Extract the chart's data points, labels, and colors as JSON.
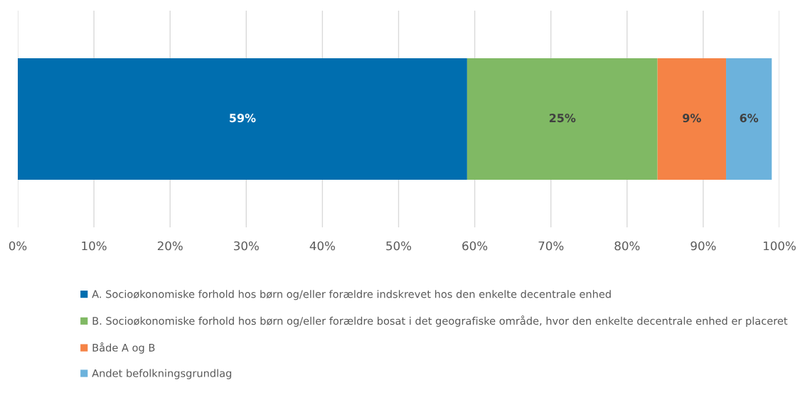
{
  "chart_data": {
    "type": "bar",
    "orientation": "horizontal",
    "stacked": true,
    "categories": [
      null
    ],
    "series": [
      {
        "name": "A. Socioøkonomiske forhold hos børn og/eller forældre indskrevet hos den enkelte decentrale enhed",
        "color": "#006eaf",
        "values": [
          59
        ],
        "value_labels": [
          "59%"
        ]
      },
      {
        "name": "B. Socioøkonomiske forhold hos børn og/eller forældre bosat i det geografiske område, hvor den enkelte decentrale enhed er placeret",
        "color": "#80b964",
        "values": [
          25
        ],
        "value_labels": [
          "25%"
        ]
      },
      {
        "name": "Både A og B",
        "color": "#f58346",
        "values": [
          9
        ],
        "value_labels": [
          "9%"
        ]
      },
      {
        "name": "Andet befolkningsgrundlag",
        "color": "#6cb2dc",
        "values": [
          6
        ],
        "value_labels": [
          "6%"
        ]
      }
    ],
    "xlim": [
      0,
      100
    ],
    "xticks": [
      {
        "value": 0,
        "label": "0%"
      },
      {
        "value": 10,
        "label": "10%"
      },
      {
        "value": 20,
        "label": "20%"
      },
      {
        "value": 30,
        "label": "30%"
      },
      {
        "value": 40,
        "label": "40%"
      },
      {
        "value": 50,
        "label": "50%"
      },
      {
        "value": 60,
        "label": "60%"
      },
      {
        "value": 70,
        "label": "70%"
      },
      {
        "value": 80,
        "label": "80%"
      },
      {
        "value": 90,
        "label": "90%"
      },
      {
        "value": 100,
        "label": "100%"
      }
    ],
    "grid": "x",
    "legend": "bottom"
  }
}
